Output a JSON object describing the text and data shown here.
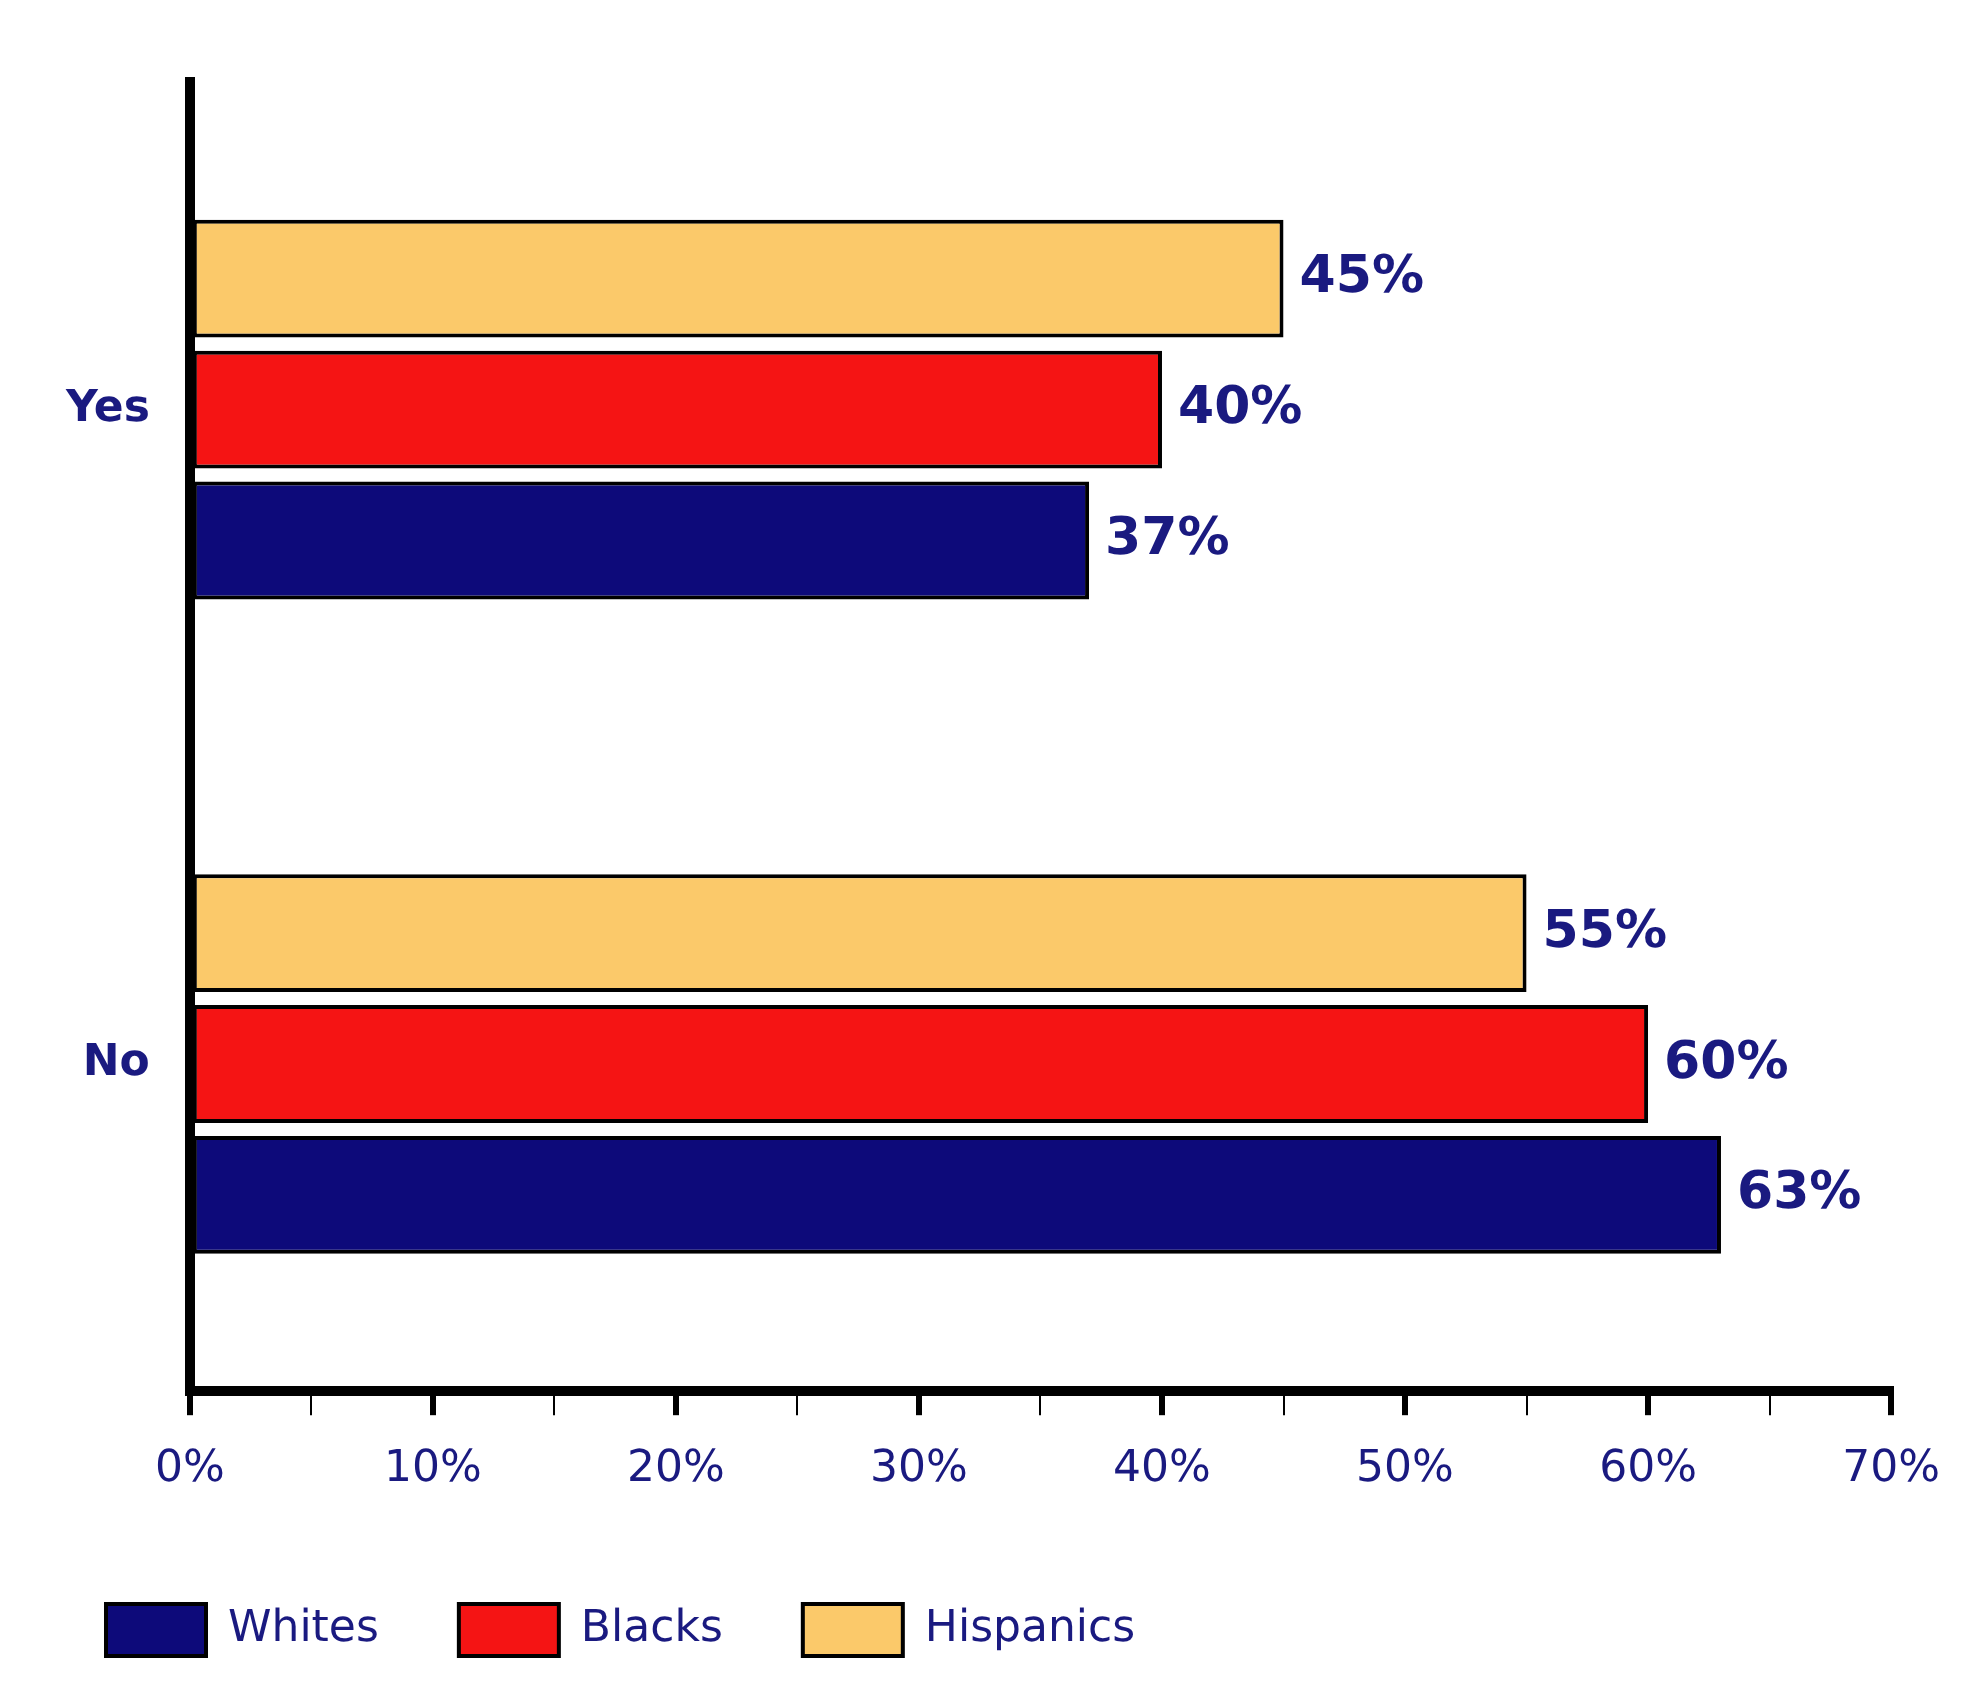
{
  "chart_data": {
    "type": "bar",
    "orientation": "horizontal",
    "categories": [
      "Yes",
      "No"
    ],
    "series": [
      {
        "name": "Whites",
        "color": "#0d0a7a",
        "values": [
          37,
          63
        ],
        "value_labels": [
          "37%",
          "63%"
        ]
      },
      {
        "name": "Blacks",
        "color": "#f51414",
        "values": [
          40,
          60
        ],
        "value_labels": [
          "40%",
          "60%"
        ]
      },
      {
        "name": "Hispanics",
        "color": "#fbc96a",
        "values": [
          45,
          55
        ],
        "value_labels": [
          "45%",
          "55%"
        ]
      }
    ],
    "xlim": [
      0,
      70
    ],
    "xticks": [
      {
        "value": 0,
        "label": "0%"
      },
      {
        "value": 5,
        "label": null
      },
      {
        "value": 10,
        "label": "10%"
      },
      {
        "value": 15,
        "label": null
      },
      {
        "value": 20,
        "label": "20%"
      },
      {
        "value": 25,
        "label": null
      },
      {
        "value": 30,
        "label": "30%"
      },
      {
        "value": 35,
        "label": null
      },
      {
        "value": 40,
        "label": "40%"
      },
      {
        "value": 45,
        "label": null
      },
      {
        "value": 50,
        "label": "50%"
      },
      {
        "value": 55,
        "label": null
      },
      {
        "value": 60,
        "label": "60%"
      },
      {
        "value": 65,
        "label": null
      },
      {
        "value": 70,
        "label": "70%"
      }
    ],
    "grid": false,
    "legend": "bottom"
  }
}
